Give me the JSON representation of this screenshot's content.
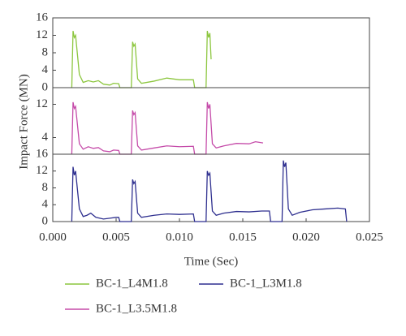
{
  "chart_data": [
    {
      "type": "line",
      "ylim": [
        0,
        16
      ],
      "yticks": [
        0,
        4,
        8,
        12,
        16
      ],
      "xlim": [
        0,
        0.025
      ],
      "series": [
        {
          "name": "BC-1_L4M1.8",
          "color": "#8cc63e",
          "x": [
            0.0015,
            0.0016,
            0.0017,
            0.0018,
            0.0021,
            0.0024,
            0.0028,
            0.0032,
            0.0036,
            0.004,
            0.0045,
            0.0048,
            0.0052,
            0.0053,
            0.0062,
            0.0063,
            0.0064,
            0.0065,
            0.0067,
            0.007,
            0.008,
            0.009,
            0.01,
            0.0111,
            0.0112,
            0.0121,
            0.0122,
            0.0123,
            0.0124,
            0.0125
          ],
          "values": [
            0,
            13,
            11.5,
            12,
            3,
            1.2,
            1.6,
            1.3,
            1.6,
            0.8,
            0.6,
            1,
            0.9,
            0,
            0,
            10.5,
            9.5,
            10,
            2,
            1,
            1.5,
            2.2,
            1.8,
            1.8,
            0,
            0,
            13,
            11.5,
            12.5,
            6.5
          ]
        }
      ]
    },
    {
      "type": "line",
      "ylim": [
        0,
        16
      ],
      "yticks": [
        4,
        12
      ],
      "xlim": [
        0,
        0.025
      ],
      "y_label": "Impact Force (MN)",
      "series": [
        {
          "name": "BC-1_L3.5M1.8",
          "color": "#c54ba9",
          "x": [
            0.0015,
            0.0016,
            0.0017,
            0.0018,
            0.0021,
            0.0024,
            0.0028,
            0.0032,
            0.0036,
            0.004,
            0.0045,
            0.0048,
            0.0052,
            0.0053,
            0.0062,
            0.0063,
            0.0064,
            0.0065,
            0.0067,
            0.007,
            0.008,
            0.009,
            0.01,
            0.0111,
            0.0112,
            0.0121,
            0.0122,
            0.0123,
            0.0124,
            0.0126,
            0.0129,
            0.0135,
            0.0145,
            0.0155,
            0.016,
            0.0166
          ],
          "values": [
            0,
            12.5,
            11,
            11.5,
            2.5,
            1.2,
            1.8,
            1.4,
            1.6,
            0.8,
            0.6,
            1,
            0.9,
            0,
            0,
            10.5,
            9.5,
            10,
            2,
            1,
            1.5,
            2,
            1.8,
            1.9,
            0,
            0,
            12.5,
            11,
            12,
            2.5,
            1.5,
            2,
            2.6,
            2.5,
            3,
            2.7
          ]
        }
      ]
    },
    {
      "type": "line",
      "ylim": [
        0,
        16
      ],
      "yticks": [
        0,
        4,
        8,
        12,
        16
      ],
      "xlim": [
        0,
        0.025
      ],
      "x_label": "Time (Sec)",
      "xticks": [
        {
          "value": 0,
          "label": "0.000"
        },
        0.005,
        {
          "value": 0.01,
          "label": "0.010"
        },
        0.015,
        {
          "value": 0.02,
          "label": "0.020"
        },
        0.025
      ],
      "series": [
        {
          "name": "BC-1_L3M1.8",
          "color": "#2e2f8f",
          "x": [
            0.0015,
            0.0016,
            0.0017,
            0.0018,
            0.0021,
            0.0024,
            0.0027,
            0.003,
            0.0034,
            0.004,
            0.0045,
            0.005,
            0.0052,
            0.0053,
            0.0062,
            0.0063,
            0.0064,
            0.0065,
            0.0067,
            0.007,
            0.008,
            0.009,
            0.01,
            0.0111,
            0.0112,
            0.0121,
            0.0122,
            0.0123,
            0.0124,
            0.0126,
            0.0129,
            0.0135,
            0.0145,
            0.0155,
            0.0165,
            0.0171,
            0.0172,
            0.0181,
            0.0182,
            0.0183,
            0.0184,
            0.0186,
            0.0189,
            0.0195,
            0.0205,
            0.0215,
            0.0225,
            0.0231,
            0.0232
          ],
          "values": [
            0,
            13,
            11,
            12,
            3,
            1.2,
            1.5,
            2,
            1,
            0.6,
            0.8,
            1,
            1,
            0,
            0,
            10,
            9,
            9.5,
            2,
            1,
            1.5,
            1.8,
            1.7,
            1.8,
            0,
            0,
            12,
            11,
            11.5,
            2.5,
            1.5,
            2,
            2.4,
            2.3,
            2.5,
            2.5,
            0,
            0,
            14.5,
            13,
            14,
            3,
            1.5,
            2.2,
            2.8,
            3,
            3.2,
            3,
            0
          ]
        }
      ]
    }
  ]
}
